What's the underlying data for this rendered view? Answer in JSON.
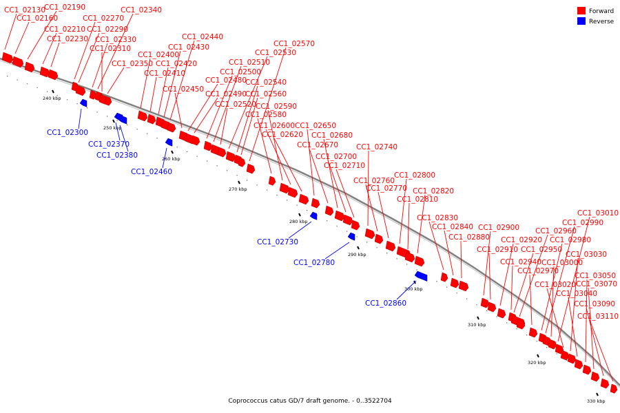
{
  "caption": "Coprococcus catus GD/7 draft genome. - 0..3522704",
  "legend": [
    {
      "label": "Forward",
      "color": "#ff0000"
    },
    {
      "label": "Reverse",
      "color": "#0000ff"
    }
  ],
  "colors": {
    "forward": "#ff0000",
    "reverse": "#0000ff",
    "backbone": "#808080"
  },
  "ticks": [
    {
      "label": "240 kbp"
    },
    {
      "label": "250 kbp"
    },
    {
      "label": "260 kbp"
    },
    {
      "label": "270 kbp"
    },
    {
      "label": "280 kbp"
    },
    {
      "label": "290 kbp"
    },
    {
      "label": "300 kbp"
    },
    {
      "label": "310 kbp"
    },
    {
      "label": "320 kbp"
    },
    {
      "label": "330 kbp"
    }
  ],
  "forward_genes": [
    "CC1_02130",
    "CC1_02160",
    "CC1_02190",
    "CC1_02210",
    "CC1_02230",
    "CC1_02270",
    "CC1_02290",
    "CC1_02340",
    "CC1_02330",
    "CC1_02310",
    "CC1_02350",
    "CC1_02400",
    "CC1_02410",
    "CC1_02420",
    "CC1_02430",
    "CC1_02440",
    "CC1_02450",
    "CC1_02480",
    "CC1_02490",
    "CC1_02500",
    "CC1_02510",
    "CC1_02520",
    "CC1_02530",
    "CC1_02540",
    "CC1_02560",
    "CC1_02570",
    "CC1_02580",
    "CC1_02590",
    "CC1_02600",
    "CC1_02620",
    "CC1_02650",
    "CC1_02670",
    "CC1_02680",
    "CC1_02700",
    "CC1_02710",
    "CC1_02740",
    "CC1_02760",
    "CC1_02770",
    "CC1_02800",
    "CC1_02810",
    "CC1_02820",
    "CC1_02830",
    "CC1_02840",
    "CC1_02880",
    "CC1_02900",
    "CC1_02910",
    "CC1_02920",
    "CC1_02940",
    "CC1_02950",
    "CC1_02960",
    "CC1_02970",
    "CC1_02980",
    "CC1_02990",
    "CC1_03000",
    "CC1_03010",
    "CC1_03020",
    "CC1_03030",
    "CC1_03040",
    "CC1_03050",
    "CC1_03070",
    "CC1_03090",
    "CC1_03110"
  ],
  "reverse_genes": [
    "CC1_02300",
    "CC1_02370",
    "CC1_02380",
    "CC1_02460",
    "CC1_02730",
    "CC1_02780",
    "CC1_02860"
  ]
}
